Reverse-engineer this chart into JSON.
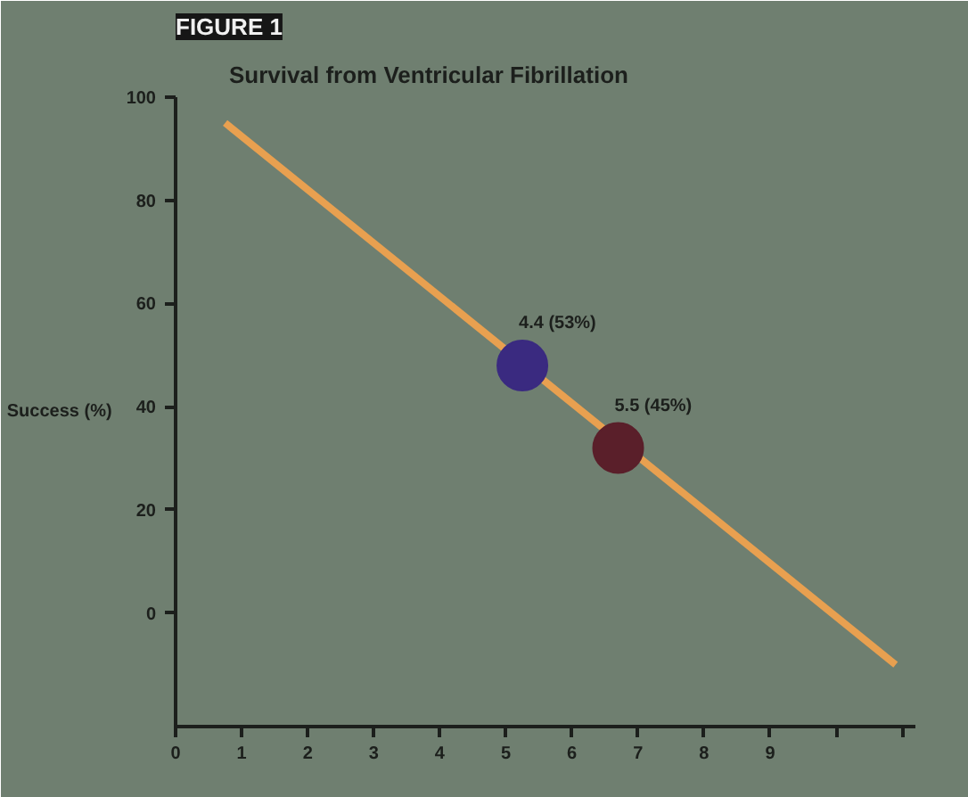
{
  "chart_data": {
    "type": "scatter",
    "title": "FIGURE 1",
    "subtitle": "Survival from Ventricular Fibrillation",
    "ylabel": "Success (%)",
    "xlim": [
      0,
      11.2
    ],
    "ylim": [
      -22,
      100
    ],
    "xticks": [
      0,
      1,
      2,
      3,
      4,
      5,
      6,
      7,
      8,
      9,
      {
        "value": 10,
        "label": null
      },
      {
        "value": 11,
        "label": null
      }
    ],
    "yticks": [
      0,
      20,
      40,
      60,
      80,
      100
    ],
    "grid": false,
    "series": [
      {
        "type": "line",
        "color": "#e8a050",
        "x": [
          0.75,
          10.9
        ],
        "values": [
          95,
          -10
        ]
      },
      {
        "marker": "circle",
        "x": [
          5.25,
          6.7
        ],
        "values": [
          48,
          32
        ],
        "colors": [
          "#3a2a80",
          "#5a1f2a"
        ],
        "value_labels": [
          "4.4 (53%)",
          "5.5 (45%)"
        ]
      }
    ]
  }
}
